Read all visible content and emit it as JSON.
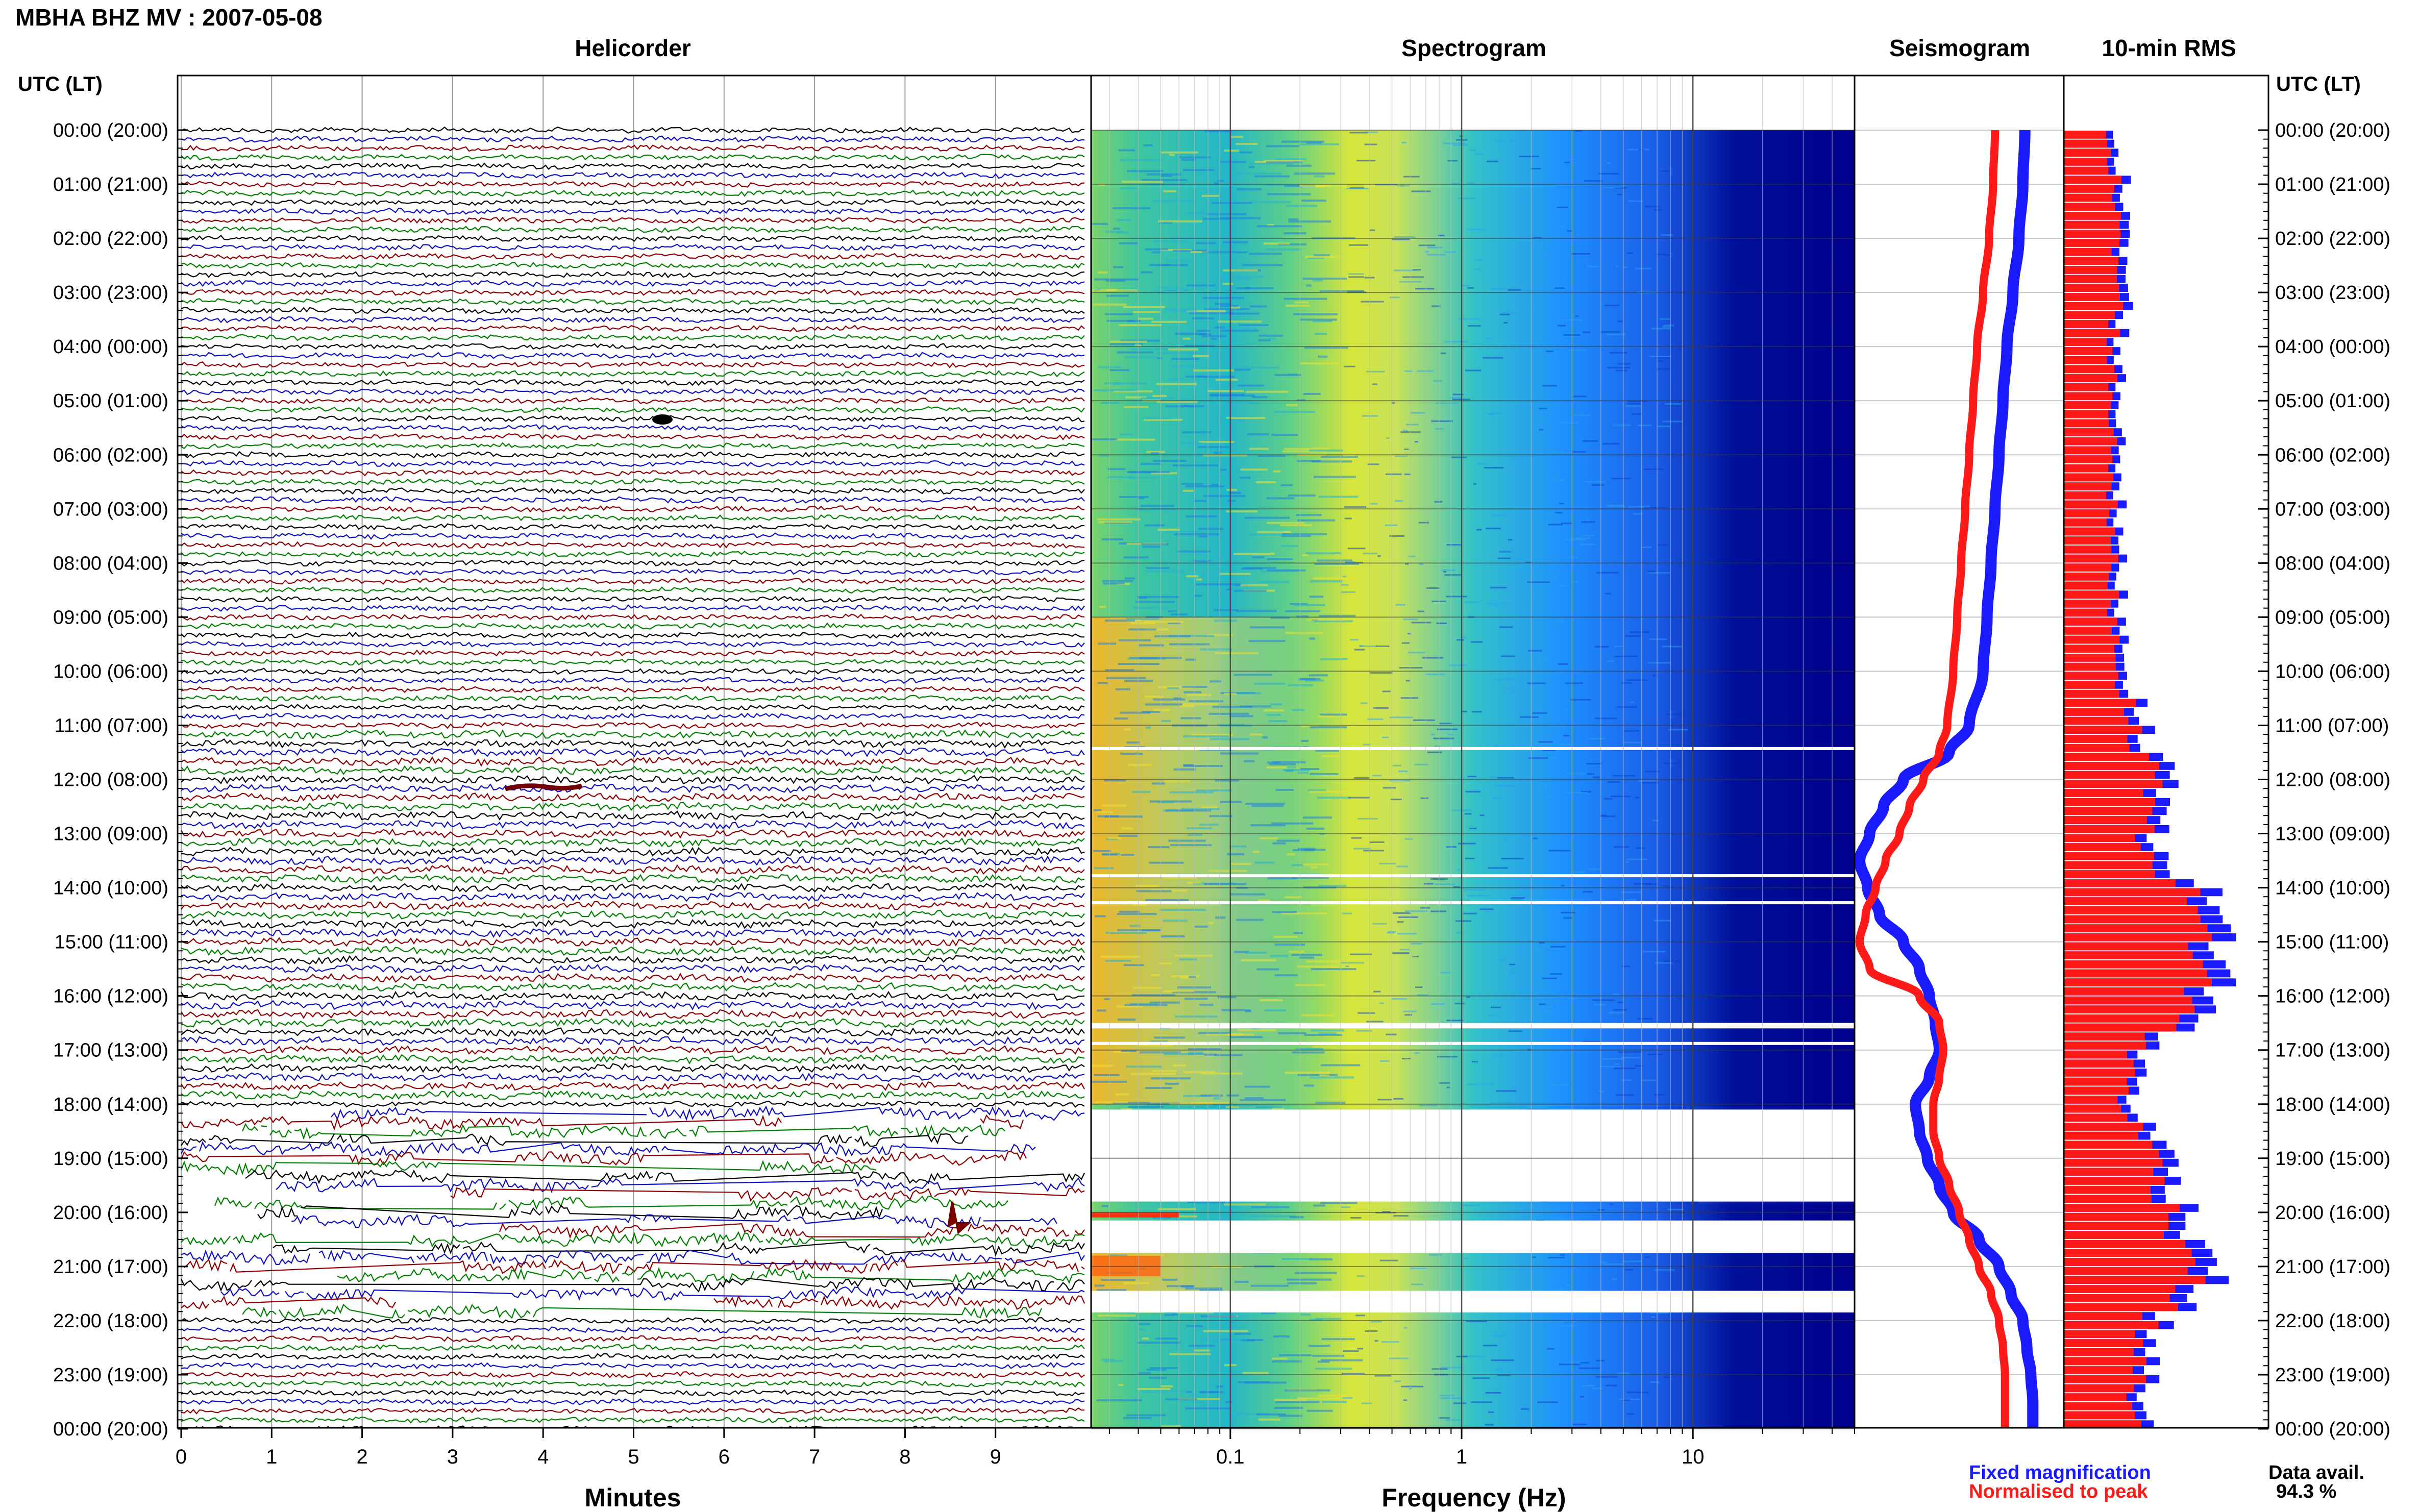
{
  "header": {
    "title": "MBHA BHZ MV : 2007-05-08"
  },
  "panels": {
    "helicorder": "Helicorder",
    "spectrogram": "Spectrogram",
    "seismogram": "Seismogram",
    "rms": "10-min RMS"
  },
  "axes": {
    "time_label_left": "UTC (LT)",
    "time_label_right": "UTC (LT)",
    "minutes_label": "Minutes",
    "frequency_label": "Frequency (Hz)"
  },
  "legend": {
    "fixed": "Fixed magnification",
    "normalised": "Normalised to peak",
    "avail_label": "Data avail.",
    "avail_value": "94.3 %"
  },
  "colors": {
    "trace_cycle": [
      "#000000",
      "#1010c0",
      "#900000",
      "#008000"
    ],
    "fixed": "#1a1aff",
    "normalised": "#ff1a1a",
    "spectrogram_low": "#00008c",
    "spectrogram_mid": "#1e90ff",
    "spectrogram_high": "#f0e020"
  },
  "chart_data": [
    {
      "type": "line",
      "name": "helicorder",
      "title": "Helicorder",
      "xlabel": "Minutes",
      "xticks": [
        "0",
        "1",
        "2",
        "3",
        "4",
        "5",
        "6",
        "7",
        "8",
        "9"
      ],
      "xlim": [
        0,
        10
      ],
      "rows_per_hour": 6,
      "hours": 24,
      "yticks": [
        "00:00 (20:00)",
        "01:00 (21:00)",
        "02:00 (22:00)",
        "03:00 (23:00)",
        "04:00 (00:00)",
        "05:00 (01:00)",
        "06:00 (02:00)",
        "07:00 (03:00)",
        "08:00 (04:00)",
        "09:00 (05:00)",
        "10:00 (06:00)",
        "11:00 (07:00)",
        "12:00 (08:00)",
        "13:00 (09:00)",
        "14:00 (10:00)",
        "15:00 (11:00)",
        "16:00 (12:00)",
        "17:00 (13:00)",
        "18:00 (14:00)",
        "19:00 (15:00)",
        "20:00 (16:00)",
        "21:00 (17:00)",
        "22:00 (18:00)",
        "23:00 (19:00)",
        "00:00 (20:00)"
      ],
      "gap_hours": [
        18.0,
        22.0
      ]
    },
    {
      "type": "heatmap",
      "name": "spectrogram",
      "title": "Spectrogram",
      "xlabel": "Frequency (Hz)",
      "xscale": "log",
      "xlim": [
        0.025,
        50
      ],
      "xticks": [
        "0.1",
        "1",
        "10"
      ],
      "ylim_hours": [
        0,
        24
      ],
      "blank_hour_ranges": [
        [
          11.4,
          11.45
        ],
        [
          13.75,
          13.8
        ],
        [
          14.25,
          14.3
        ],
        [
          16.5,
          16.6
        ],
        [
          16.85,
          16.9
        ],
        [
          18.1,
          19.8
        ],
        [
          20.15,
          20.75
        ],
        [
          21.45,
          21.85
        ]
      ]
    },
    {
      "type": "line",
      "name": "seismogram",
      "title": "Seismogram",
      "hours": [
        0,
        1,
        2,
        3,
        4,
        5,
        6,
        7,
        8,
        9,
        10,
        11,
        11.5,
        12,
        12.5,
        13,
        13.5,
        14,
        14.5,
        15,
        15.5,
        16,
        16.5,
        17,
        17.5,
        18,
        18.5,
        19,
        19.5,
        20,
        20.5,
        21,
        21.5,
        22,
        22.5,
        23,
        23.5,
        24
      ],
      "series": [
        {
          "name": "Fixed magnification",
          "values": [
            0.83,
            0.82,
            0.8,
            0.77,
            0.74,
            0.72,
            0.7,
            0.68,
            0.66,
            0.64,
            0.62,
            0.55,
            0.45,
            0.22,
            0.12,
            0.05,
            0.0,
            0.04,
            0.1,
            0.22,
            0.3,
            0.35,
            0.38,
            0.4,
            0.35,
            0.28,
            0.3,
            0.34,
            0.4,
            0.47,
            0.6,
            0.7,
            0.76,
            0.82,
            0.84,
            0.86,
            0.87,
            0.87
          ]
        },
        {
          "name": "Normalised to peak",
          "values": [
            0.68,
            0.67,
            0.65,
            0.62,
            0.59,
            0.57,
            0.55,
            0.53,
            0.51,
            0.49,
            0.47,
            0.44,
            0.4,
            0.32,
            0.25,
            0.2,
            0.13,
            0.08,
            0.03,
            0.0,
            0.05,
            0.3,
            0.4,
            0.42,
            0.4,
            0.37,
            0.37,
            0.4,
            0.45,
            0.5,
            0.55,
            0.6,
            0.66,
            0.7,
            0.72,
            0.73,
            0.73,
            0.73
          ]
        }
      ]
    },
    {
      "type": "bar",
      "name": "10-min RMS",
      "title": "10-min RMS",
      "orientation": "horizontal",
      "bin_minutes": 10,
      "hour_profile": [
        0.28,
        0.3,
        0.3,
        0.32,
        0.28,
        0.28,
        0.3,
        0.27,
        0.28,
        0.3,
        0.33,
        0.4,
        0.55,
        0.45,
        0.7,
        0.82,
        0.78,
        0.4,
        0.35,
        0.55,
        0.62,
        0.8,
        0.48,
        0.42,
        0.4
      ],
      "series": [
        {
          "name": "Fixed magnification",
          "scale": 1.0
        },
        {
          "name": "Normalised to peak",
          "scale": 0.86
        }
      ]
    }
  ]
}
